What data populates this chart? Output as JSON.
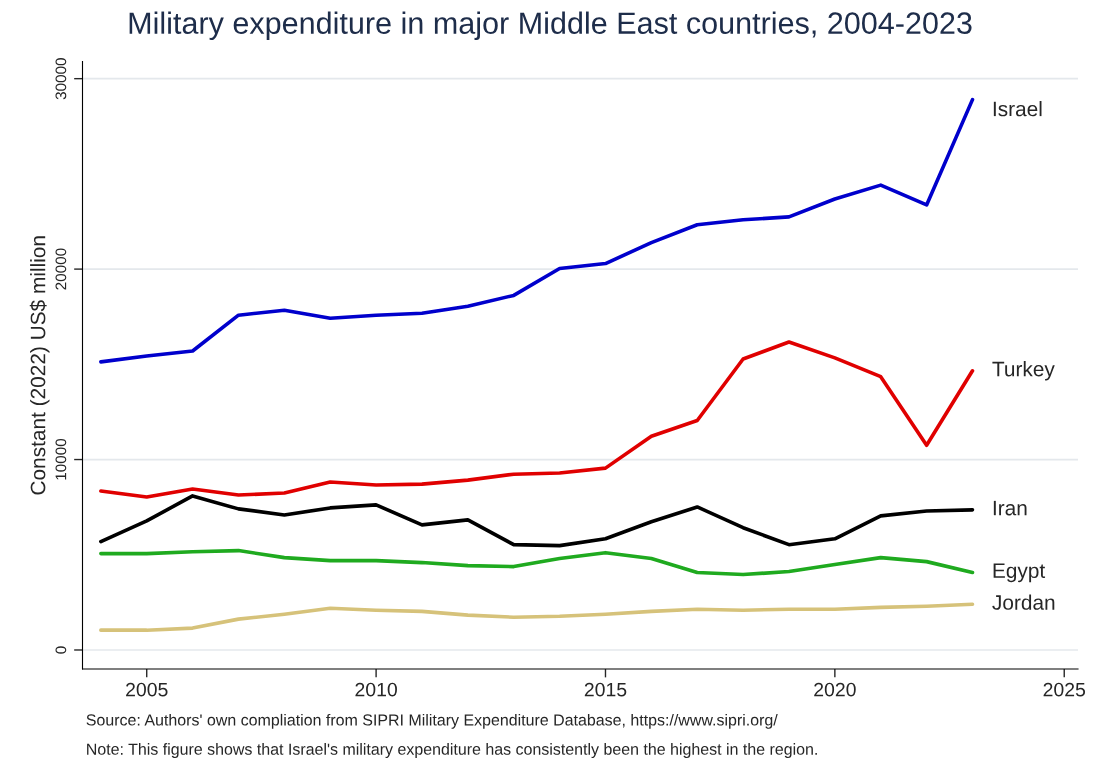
{
  "chart_data": {
    "type": "line",
    "title": "Military expenditure in major Middle East countries, 2004-2023",
    "ylabel": "Constant (2022) US$ million",
    "x": [
      2004,
      2005,
      2006,
      2007,
      2008,
      2009,
      2010,
      2011,
      2012,
      2013,
      2014,
      2015,
      2016,
      2017,
      2018,
      2019,
      2020,
      2021,
      2022,
      2023
    ],
    "series": [
      {
        "name": "Israel",
        "color": "#0000cc",
        "values": [
          15130,
          15440,
          15700,
          17580,
          17840,
          17420,
          17580,
          17680,
          18050,
          18620,
          20030,
          20290,
          21390,
          22330,
          22590,
          22740,
          23680,
          24410,
          23370,
          28900
        ]
      },
      {
        "name": "Turkey",
        "color": "#e00000",
        "values": [
          8350,
          8030,
          8450,
          8140,
          8240,
          8820,
          8660,
          8710,
          8920,
          9230,
          9290,
          9550,
          11220,
          12050,
          15280,
          16170,
          15340,
          14350,
          10750,
          14660
        ]
      },
      {
        "name": "Iran",
        "color": "#000000",
        "values": [
          5690,
          6780,
          8090,
          7410,
          7090,
          7460,
          7620,
          6570,
          6830,
          5530,
          5480,
          5840,
          6730,
          7510,
          6420,
          5530,
          5840,
          7040,
          7300,
          7360
        ]
      },
      {
        "name": "Egypt",
        "color": "#1faa1f",
        "values": [
          5060,
          5060,
          5160,
          5220,
          4850,
          4690,
          4690,
          4590,
          4430,
          4380,
          4800,
          5110,
          4800,
          4070,
          3960,
          4120,
          4490,
          4850,
          4640,
          4070
        ]
      },
      {
        "name": "Jordan",
        "color": "#d6c27a",
        "values": [
          1040,
          1040,
          1150,
          1620,
          1880,
          2190,
          2090,
          2030,
          1830,
          1720,
          1770,
          1880,
          2030,
          2140,
          2090,
          2140,
          2140,
          2240,
          2300,
          2400
        ]
      }
    ],
    "xlim": [
      2003.6,
      2025.3
    ],
    "xticks": [
      2005,
      2010,
      2015,
      2020,
      2025
    ],
    "ylim": [
      -1000,
      30900
    ],
    "yticks": [
      0,
      10000,
      20000,
      30000
    ],
    "grid": "y",
    "legend": false,
    "marker": "none",
    "line_style": "solid",
    "annotations": [
      "Source: Authors' own compliation from SIPRI Military Expenditure Database, https://www.sipri.org/",
      "Note: This figure shows that Israel's military expenditure has consistently been the highest in the region."
    ]
  }
}
